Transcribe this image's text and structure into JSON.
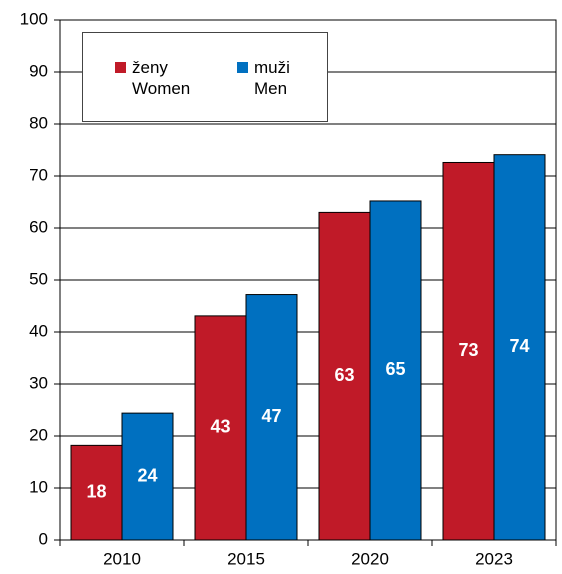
{
  "chart_data": {
    "type": "bar",
    "categories": [
      "2010",
      "2015",
      "2020",
      "2023"
    ],
    "series": [
      {
        "name": "ženy Women",
        "color": "#c01a28",
        "values": [
          18.2,
          43.1,
          63.0,
          72.6
        ],
        "value_labels": [
          "18",
          "43",
          "63",
          "73"
        ]
      },
      {
        "name": "muži Men",
        "color": "#0070c0",
        "values": [
          24.4,
          47.2,
          65.2,
          74.1
        ],
        "value_labels": [
          "24",
          "47",
          "65",
          "74"
        ]
      }
    ],
    "ylim": [
      0,
      100
    ],
    "yticks": [
      0,
      10,
      20,
      30,
      40,
      50,
      60,
      70,
      80,
      90,
      100
    ],
    "grid": true,
    "legend": "top-left"
  }
}
